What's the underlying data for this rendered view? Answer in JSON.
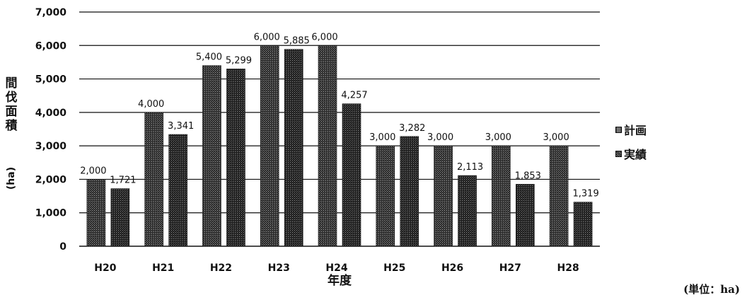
{
  "chart_data": {
    "type": "bar",
    "categories": [
      "H20",
      "H21",
      "H22",
      "H23",
      "H24",
      "H25",
      "H26",
      "H27",
      "H28"
    ],
    "series": [
      {
        "name": "計画",
        "values": [
          2000,
          4000,
          5400,
          6000,
          6000,
          3000,
          3000,
          3000,
          3000
        ],
        "labels": [
          "2,000",
          "4,000",
          "5,400",
          "6,000",
          "6,000",
          "3,000",
          "3,000",
          "3,000",
          "3,000"
        ]
      },
      {
        "name": "実績",
        "values": [
          1721,
          3341,
          5299,
          5885,
          4257,
          3282,
          2113,
          1853,
          1319
        ],
        "labels": [
          "1,721",
          "3,341",
          "5,299",
          "5,885",
          "4,257",
          "3,282",
          "2,113",
          "1,853",
          "1,319"
        ]
      }
    ],
    "yticks": [
      "0",
      "1,000",
      "2,000",
      "3,000",
      "4,000",
      "5,000",
      "6,000",
      "7,000"
    ],
    "ylim": [
      0,
      7000
    ],
    "ylabel": "間伐面積",
    "ylabel_unit": "(ha)",
    "xlabel": "年度",
    "legend_position": "right",
    "grid": true,
    "colors": {
      "plan": "#2a2a2a",
      "actual": "#1a1a1a",
      "grid": "#111111"
    }
  },
  "unit_note": "(単位：ha)"
}
